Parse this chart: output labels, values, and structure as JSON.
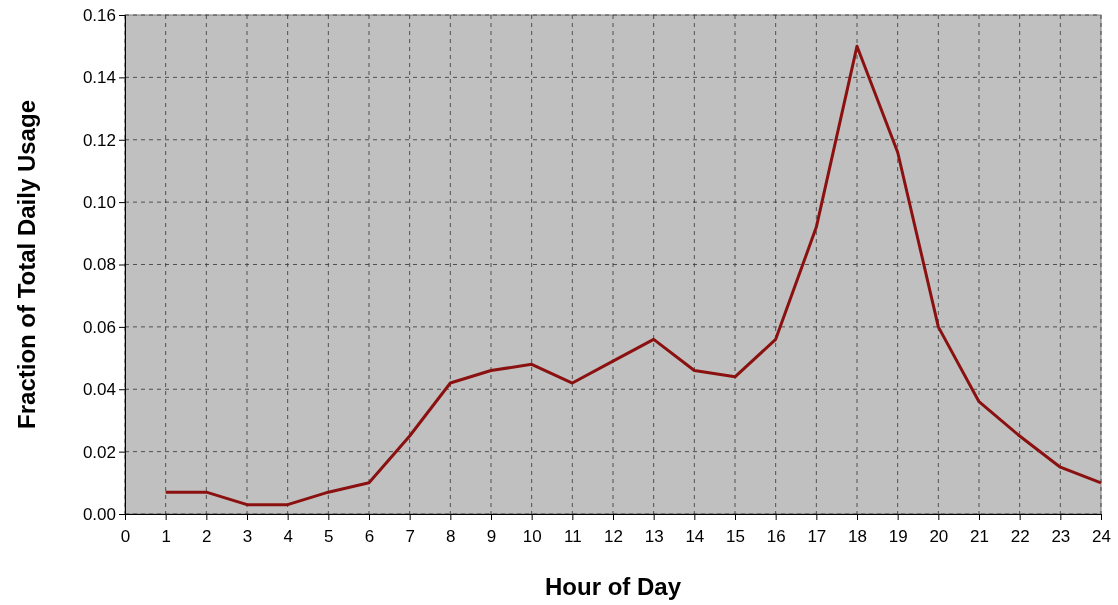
{
  "chart_data": {
    "type": "line",
    "xlabel": "Hour of Day",
    "ylabel": "Fraction of Total Daily Usage",
    "x": [
      1,
      2,
      3,
      4,
      5,
      6,
      7,
      8,
      9,
      10,
      11,
      12,
      13,
      14,
      15,
      16,
      17,
      18,
      19,
      20,
      21,
      22,
      23,
      24
    ],
    "series": [
      {
        "color": "#8b1111",
        "values": [
          0.007,
          0.007,
          0.003,
          0.003,
          0.007,
          0.01,
          0.025,
          0.042,
          0.046,
          0.048,
          0.042,
          0.049,
          0.056,
          0.046,
          0.044,
          0.056,
          0.092,
          0.15,
          0.116,
          0.06,
          0.036,
          0.025,
          0.015,
          0.01
        ]
      }
    ],
    "xlim": [
      0,
      24
    ],
    "xticks": [
      0,
      1,
      2,
      3,
      4,
      5,
      6,
      7,
      8,
      9,
      10,
      11,
      12,
      13,
      14,
      15,
      16,
      17,
      18,
      19,
      20,
      21,
      22,
      23,
      24
    ],
    "ylim": [
      0,
      0.16
    ],
    "yticks": [
      {
        "value": 0,
        "label": "0.00"
      },
      {
        "value": 0.02,
        "label": "0.02"
      },
      {
        "value": 0.04,
        "label": "0.04"
      },
      {
        "value": 0.06,
        "label": "0.06"
      },
      {
        "value": 0.08,
        "label": "0.08"
      },
      {
        "value": 0.1,
        "label": "0.10"
      },
      {
        "value": 0.12,
        "label": "0.12"
      },
      {
        "value": 0.14,
        "label": "0.14"
      },
      {
        "value": 0.16,
        "label": "0.16"
      }
    ],
    "grid": true,
    "marker": "none",
    "line_style": "solid"
  }
}
